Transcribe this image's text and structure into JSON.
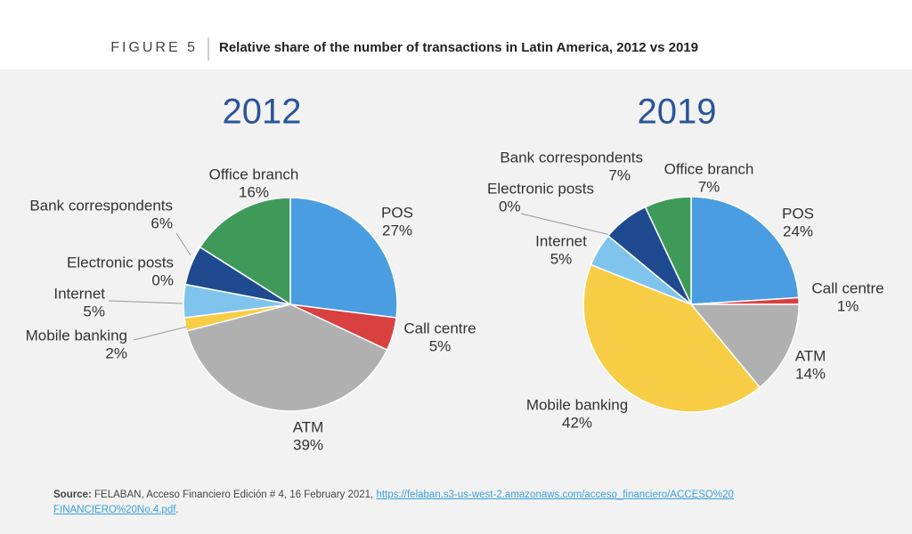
{
  "figure_label": "FIGURE 5",
  "heading": "Relative share of the number of transactions in Latin America, 2012 vs 2019",
  "source": {
    "label": "Source:",
    "text": "FELABAN, Acceso Financiero Edición # 4, 16 February 2021,",
    "url_lines": [
      "https://felaban.s3-us-west-2.amazonaws.com/acceso_financiero/ACCESO%20",
      "FINANCIERO%20No.4.pdf"
    ],
    "end": "."
  },
  "chart_data": [
    {
      "type": "pie",
      "title": "2012",
      "categories": [
        "POS",
        "Call centre",
        "ATM",
        "Mobile banking",
        "Internet",
        "Electronic posts",
        "Bank correspondents",
        "Office branch"
      ],
      "values": [
        27,
        5,
        39,
        2,
        5,
        0,
        6,
        16
      ],
      "value_labels": [
        "27%",
        "5%",
        "39%",
        "2%",
        "5%",
        "0%",
        "6%",
        "16%"
      ],
      "colors": [
        "#4a9de0",
        "#d94040",
        "#b0b0b0",
        "#f7cd45",
        "#7fc4ec",
        "#2d6fb5",
        "#1f4a8f",
        "#3f9a5a"
      ]
    },
    {
      "type": "pie",
      "title": "2019",
      "categories": [
        "POS",
        "Call centre",
        "ATM",
        "Mobile banking",
        "Internet",
        "Electronic posts",
        "Bank correspondents",
        "Office branch"
      ],
      "values": [
        24,
        1,
        14,
        42,
        5,
        0,
        7,
        7
      ],
      "value_labels": [
        "24%",
        "1%",
        "14%",
        "42%",
        "5%",
        "0%",
        "7%",
        "7%"
      ],
      "colors": [
        "#4a9de0",
        "#d94040",
        "#b0b0b0",
        "#f7cd45",
        "#7fc4ec",
        "#2d6fb5",
        "#1f4a8f",
        "#3f9a5a"
      ]
    }
  ]
}
